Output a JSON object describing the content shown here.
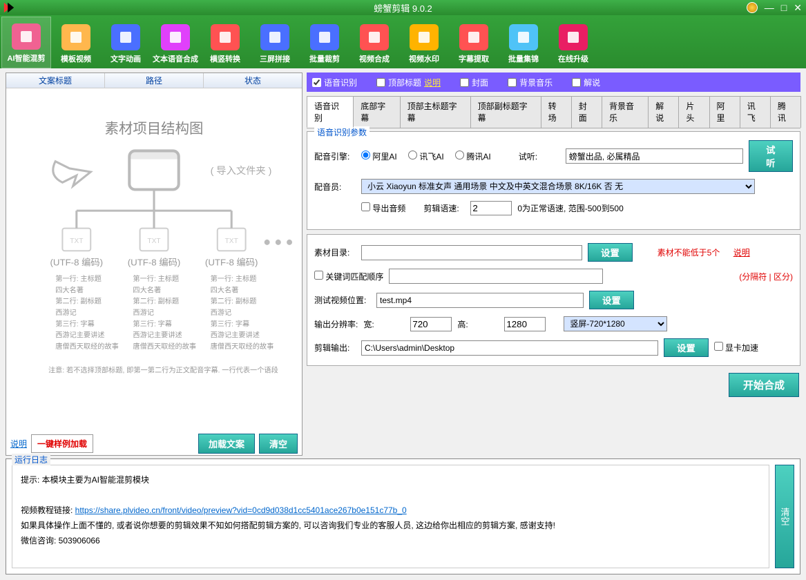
{
  "app_title": "螃蟹剪辑 9.0.2",
  "toolbar": [
    {
      "label": "AI智能混剪",
      "color": "#f06292"
    },
    {
      "label": "模板视频",
      "color": "#ffb74d"
    },
    {
      "label": "文字动画",
      "color": "#4a6fff"
    },
    {
      "label": "文本语音合成",
      "color": "#e040fb"
    },
    {
      "label": "横竖转换",
      "color": "#ff5252"
    },
    {
      "label": "三屏拼接",
      "color": "#4a6fff"
    },
    {
      "label": "批量裁剪",
      "color": "#4a6fff"
    },
    {
      "label": "视频合成",
      "color": "#ff5252"
    },
    {
      "label": "视频水印",
      "color": "#ffb300"
    },
    {
      "label": "字幕提取",
      "color": "#ff5252"
    },
    {
      "label": "批量集锦",
      "color": "#4fc3f7"
    },
    {
      "label": "在线升级",
      "color": "#e91e63"
    }
  ],
  "left": {
    "cols": [
      "文案标题",
      "路径",
      "状态"
    ],
    "footer_explain": "说明",
    "btn_example": "一键样例加载",
    "btn_load": "加载文案",
    "btn_clear": "清空"
  },
  "checks": [
    {
      "label": "语音识别",
      "checked": true
    },
    {
      "label": "顶部标题",
      "checked": false,
      "explain": "说明"
    },
    {
      "label": "封面",
      "checked": false
    },
    {
      "label": "背景音乐",
      "checked": false
    },
    {
      "label": "解说",
      "checked": false
    }
  ],
  "tabs": [
    "语音识别",
    "底部字幕",
    "顶部主标题字幕",
    "顶部副标题字幕",
    "转场",
    "封面",
    "背景音乐",
    "解说",
    "片头",
    "阿里",
    "讯飞",
    "腾讯"
  ],
  "voice": {
    "legend": "语音识别参数",
    "engine_label": "配音引擎:",
    "engines": [
      "阿里AI",
      "讯飞AI",
      "腾讯AI"
    ],
    "preview_label": "试听:",
    "preview_text": "螃蟹出品, 必属精品",
    "preview_btn": "试听",
    "voice_label": "配音员:",
    "voice_value": "小云 Xiaoyun 标准女声 通用场景 中文及中英文混合场景 8K/16K 否 无",
    "export_audio": "导出音频",
    "speed_label": "剪辑语速:",
    "speed_value": "2",
    "speed_hint": "0为正常语速, 范围-500到500"
  },
  "mat": {
    "dir_label": "素材目录:",
    "btn_set": "设置",
    "warn": "素材不能低于5个",
    "warn_explain": "说明",
    "kw_label": "关键词匹配顺序",
    "kw_hint": "(分隔符 | 区分)",
    "test_label": "测试视频位置:",
    "test_value": "test.mp4",
    "res_label": "输出分辨率:",
    "w_label": "宽:",
    "w_value": "720",
    "h_label": "高:",
    "h_value": "1280",
    "preset": "竖屏-720*1280",
    "out_label": "剪辑输出:",
    "out_value": "C:\\Users\\admin\\Desktop",
    "gpu": "显卡加速"
  },
  "start_btn": "开始合成",
  "log": {
    "legend": "运行日志",
    "line1": "提示: 本模块主要为AI智能混剪模块",
    "line2_a": "视频教程链接: ",
    "line2_link": "https://share.plvideo.cn/front/video/preview?vid=0cd9d038d1cc5401ace267b0e151c77b_0",
    "line3": "如果具体操作上面不懂的, 或者说你想要的剪辑效果不知如何搭配剪辑方案的, 可以咨询我们专业的客服人员, 这边给你出相应的剪辑方案, 感谢支持!",
    "line4": "微信咨询: 503906066",
    "clear": "清空"
  }
}
